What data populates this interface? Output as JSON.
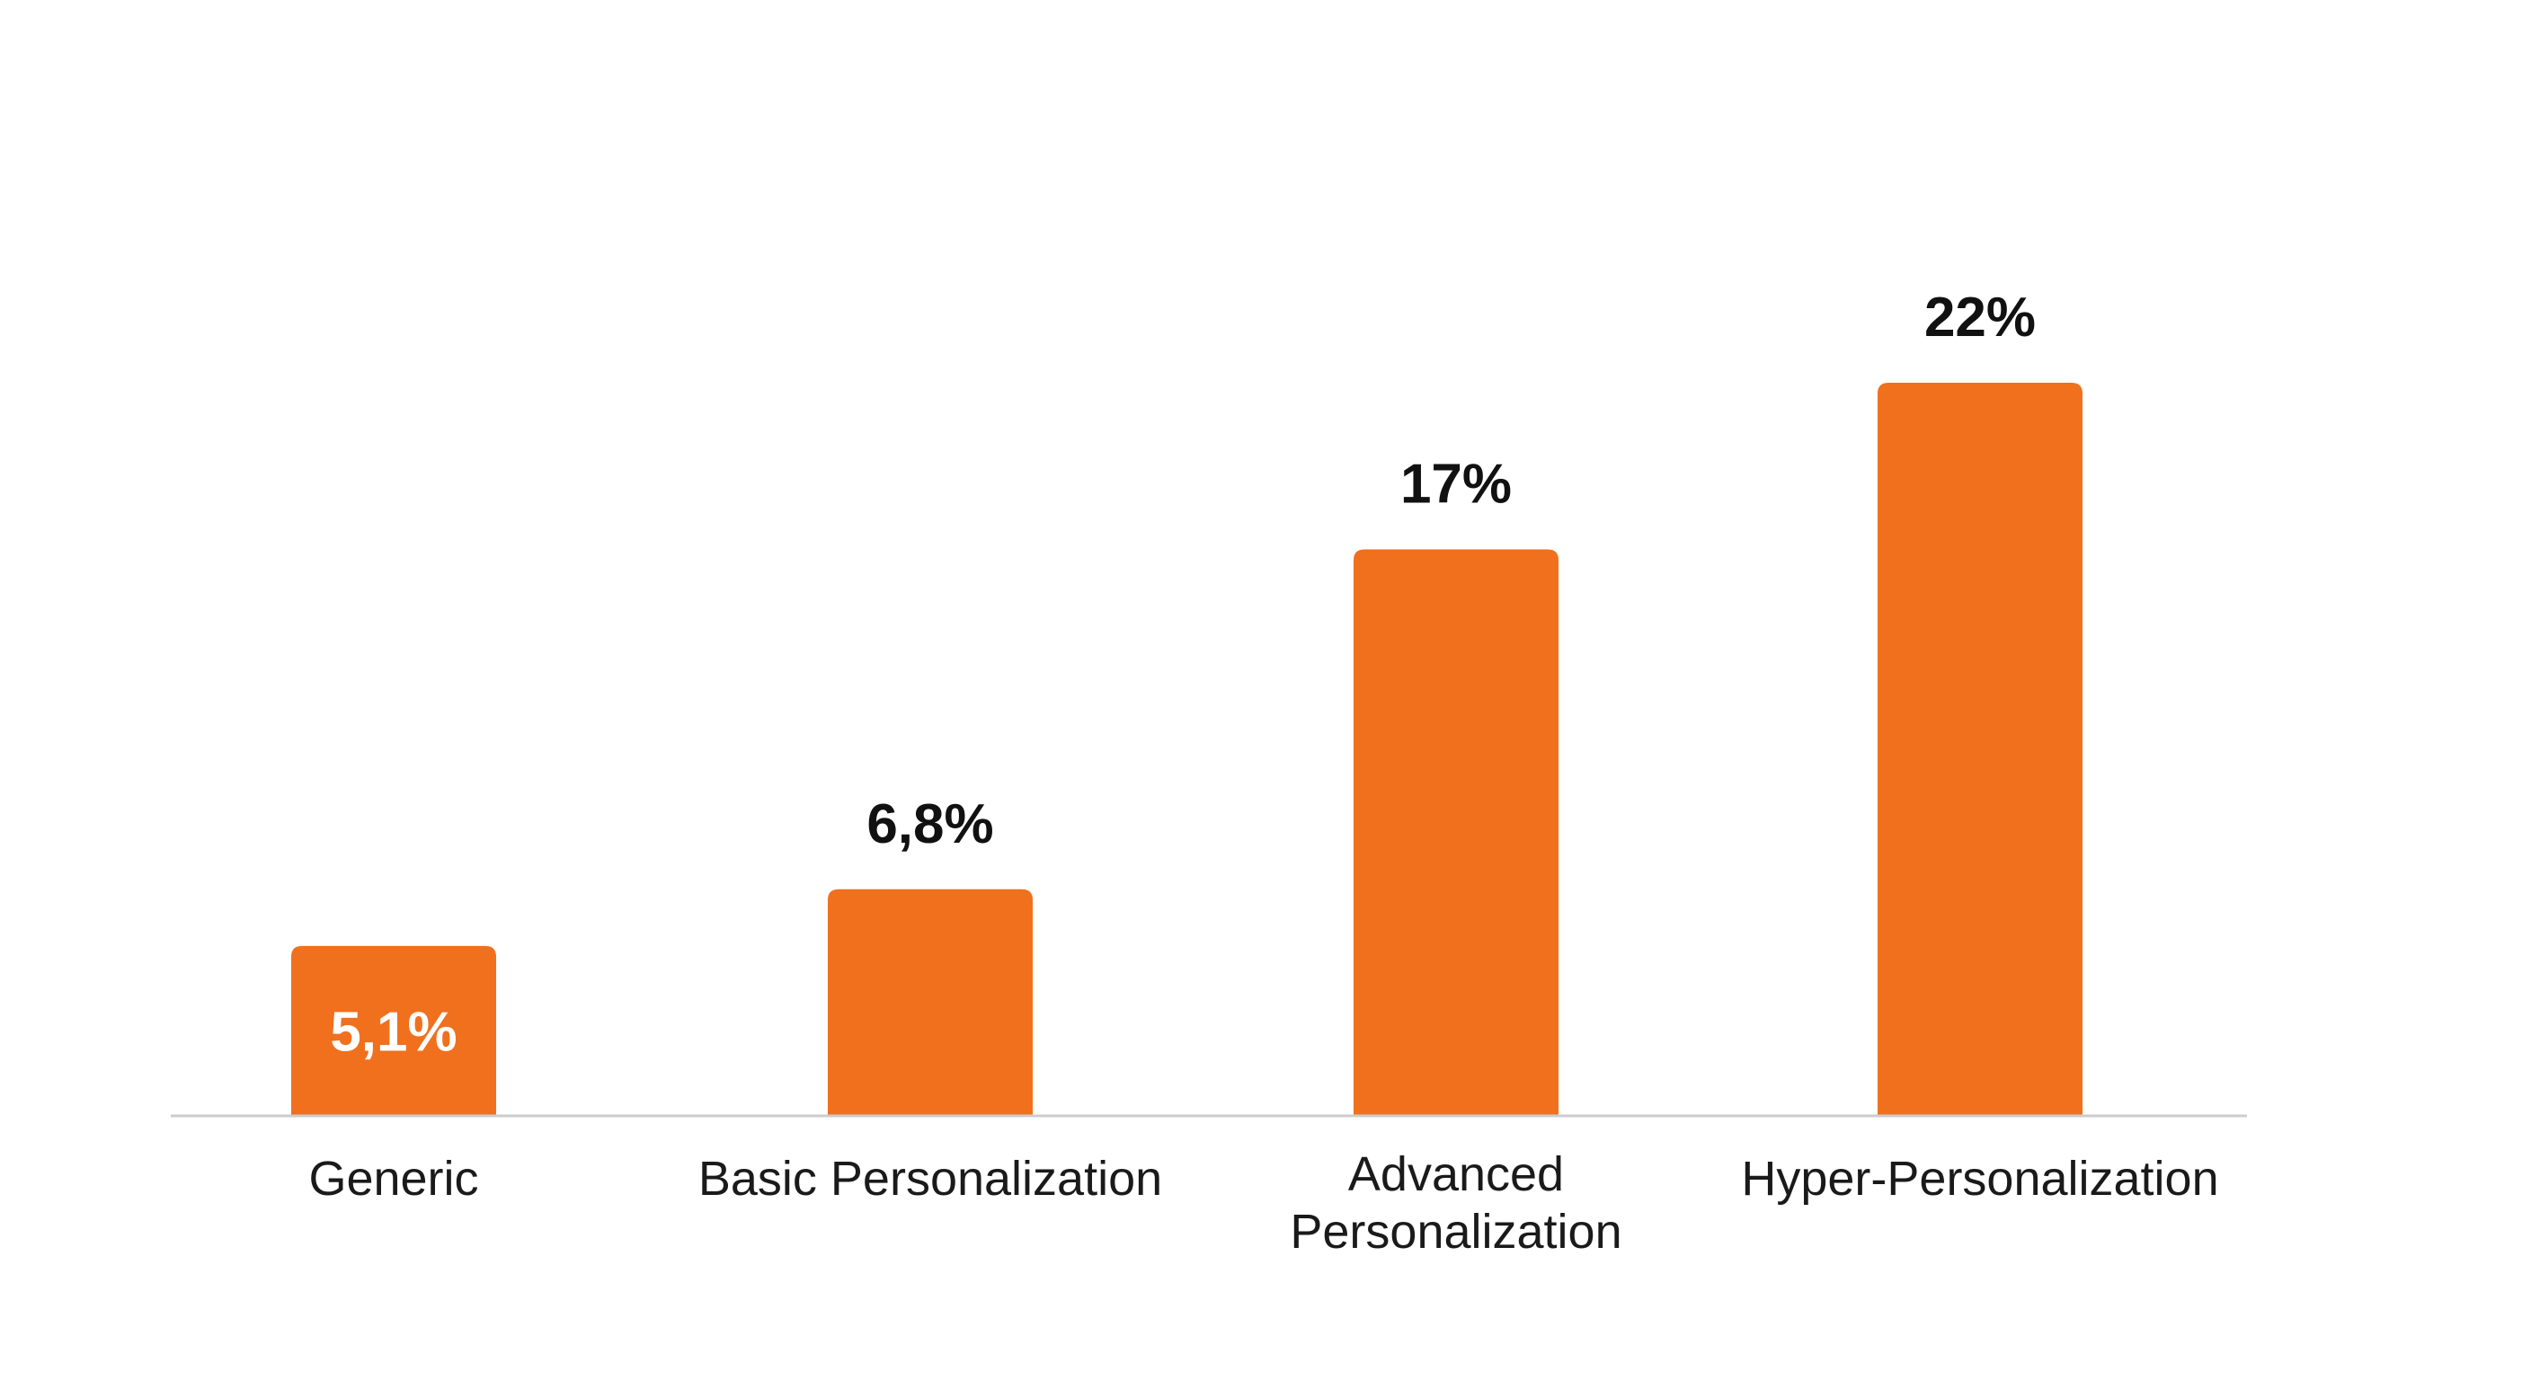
{
  "chart_data": {
    "type": "bar",
    "title": "",
    "xlabel": "",
    "ylabel": "",
    "categories": [
      [
        "Generic"
      ],
      [
        "Basic Personalization"
      ],
      [
        "Advanced",
        "Personalization"
      ],
      [
        "Hyper-Personalization"
      ]
    ],
    "values": [
      5.1,
      6.8,
      17,
      22
    ],
    "value_labels": [
      "5,1%",
      "6,8%",
      "17%",
      "22%"
    ],
    "value_label_inside": [
      true,
      false,
      false,
      false
    ],
    "ylim": [
      0,
      22
    ],
    "grid": false,
    "legend": "none",
    "colors": {
      "bar": "#F0701E",
      "axis": "#cccccc",
      "label_dark": "#111111",
      "label_light": "#ffffff"
    }
  }
}
